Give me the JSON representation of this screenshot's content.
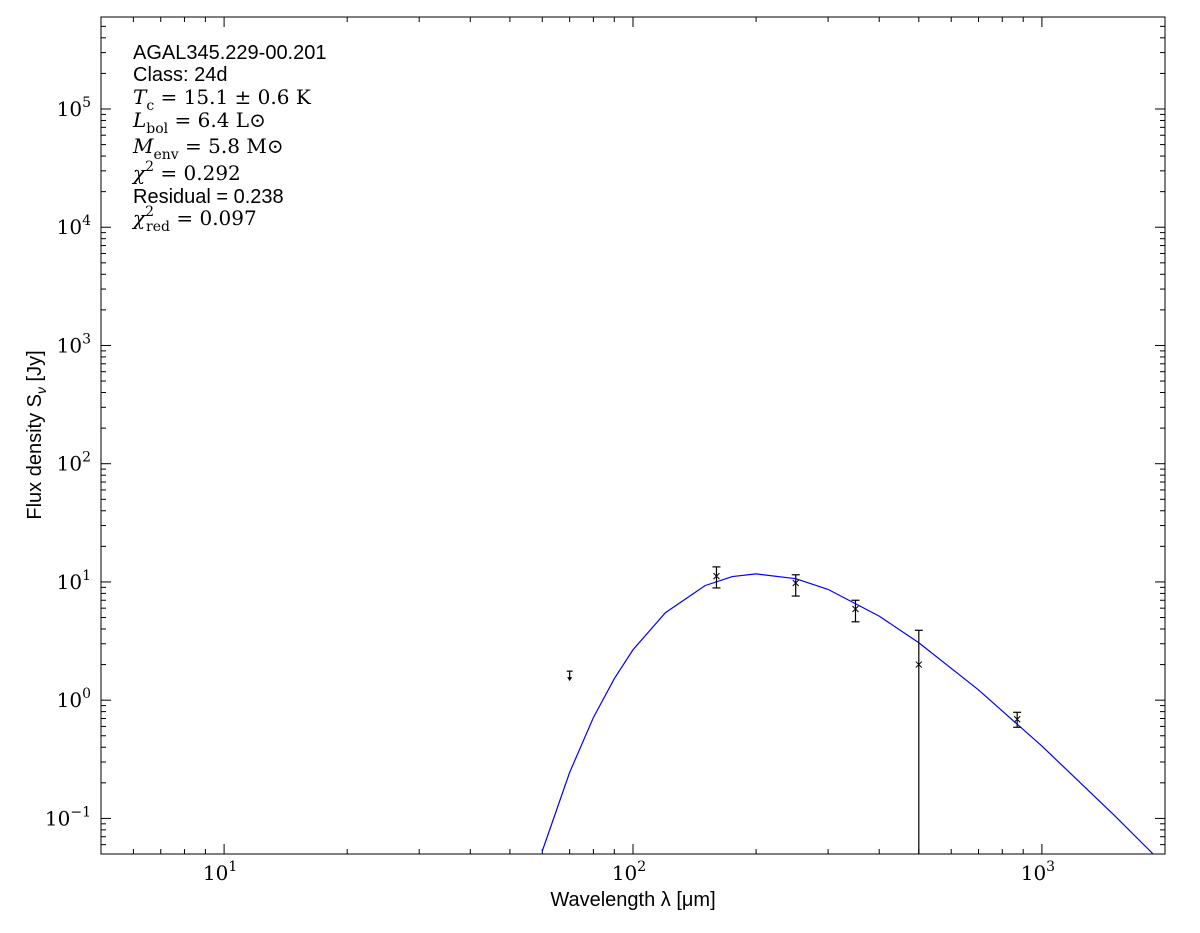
{
  "chart_data": {
    "type": "scatter",
    "xlabel": "Wavelength λ [μm]",
    "ylabel": "Flux density S",
    "ylabel_sub": "ν",
    "ylabel_unit": " [Jy]",
    "xscale": "log",
    "yscale": "log",
    "xlim": [
      5,
      2000
    ],
    "ylim": [
      0.05,
      600000
    ],
    "grid": false,
    "xticks": [
      {
        "base": "10",
        "exp": "1",
        "value": 10
      },
      {
        "base": "10",
        "exp": "2",
        "value": 100
      },
      {
        "base": "10",
        "exp": "3",
        "value": 1000
      }
    ],
    "yticks": [
      {
        "base": "10",
        "exp": "−1",
        "value": 0.1
      },
      {
        "base": "10",
        "exp": "0",
        "value": 1
      },
      {
        "base": "10",
        "exp": "1",
        "value": 10
      },
      {
        "base": "10",
        "exp": "2",
        "value": 100
      },
      {
        "base": "10",
        "exp": "3",
        "value": 1000
      },
      {
        "base": "10",
        "exp": "4",
        "value": 10000
      },
      {
        "base": "10",
        "exp": "5",
        "value": 100000
      }
    ],
    "points": [
      {
        "x": 160,
        "y": 11.2,
        "ylo": 8.9,
        "yhi": 13.4
      },
      {
        "x": 250,
        "y": 9.8,
        "ylo": 7.6,
        "yhi": 11.5
      },
      {
        "x": 350,
        "y": 5.9,
        "ylo": 4.6,
        "yhi": 7.0
      },
      {
        "x": 500,
        "y": 2.0,
        "ylo": 0.0,
        "yhi": 3.9
      },
      {
        "x": 870,
        "y": 0.69,
        "ylo": 0.59,
        "yhi": 0.79
      }
    ],
    "upper_limits": [
      {
        "x": 70,
        "y": 1.76
      }
    ],
    "model_curve": {
      "color": "#0000ff",
      "x": [
        60,
        70,
        80,
        90,
        100,
        120,
        150,
        175,
        200,
        250,
        300,
        400,
        500,
        700,
        1000,
        1500,
        2000
      ],
      "y": [
        0.053,
        0.245,
        0.712,
        1.52,
        2.67,
        5.49,
        9.31,
        11.1,
        11.7,
        10.66,
        8.65,
        5.14,
        3.06,
        1.22,
        0.409,
        0.107,
        0.0397
      ]
    },
    "annotations": {
      "source": "AGAL345.229-00.201",
      "class": "Class: 24d",
      "math": [
        {
          "sym": "T",
          "sub": "c",
          "sup": "",
          "rest": " = 15.1 ± 0.6 K"
        },
        {
          "sym": "L",
          "sub": "bol",
          "sup": "",
          "rest": " = 6.4 L⊙"
        },
        {
          "sym": "M",
          "sub": "env",
          "sup": "",
          "rest": " = 5.8 M⊙"
        },
        {
          "sym": "χ",
          "sub": "",
          "sup": "2",
          "rest": " = 0.292"
        }
      ],
      "residual": "Residual = 0.238",
      "chi_red": {
        "sym": "χ",
        "sub": "red",
        "sup": "2",
        "rest": " = 0.097"
      }
    }
  }
}
